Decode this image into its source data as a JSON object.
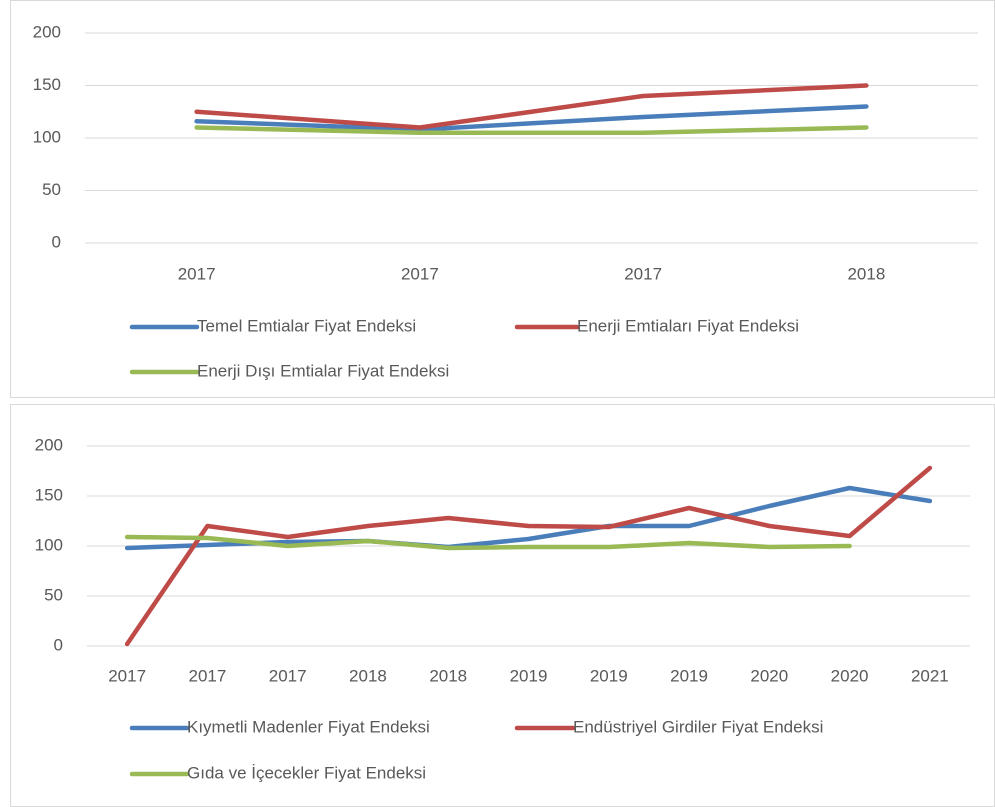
{
  "chart_data": [
    {
      "type": "line",
      "categories": [
        "2017",
        "2017",
        "2017",
        "2018"
      ],
      "series": [
        {
          "name": "Temel Emtialar Fiyat Endeksi",
          "color": "#4a7ebb",
          "values": [
            116,
            108,
            120,
            130
          ]
        },
        {
          "name": "Enerji Emtiaları Fiyat Endeksi",
          "color": "#be4b48",
          "values": [
            125,
            110,
            140,
            150
          ]
        },
        {
          "name": "Enerji Dışı Emtialar Fiyat Endeksi",
          "color": "#98b954",
          "values": [
            110,
            105,
            105,
            110
          ]
        }
      ],
      "ylim": [
        0,
        200
      ],
      "yticks": [
        0,
        50,
        100,
        150,
        200
      ],
      "grid": true,
      "legend": "bottom"
    },
    {
      "type": "line",
      "categories": [
        "2017",
        "2017",
        "2017",
        "2018",
        "2018",
        "2019",
        "2019",
        "2019",
        "2020",
        "2020",
        "2021"
      ],
      "series": [
        {
          "name": "Kıymetli Madenler Fiyat Endeksi",
          "color": "#4a7ebb",
          "values": [
            98,
            101,
            104,
            105,
            99,
            107,
            120,
            120,
            140,
            158,
            145
          ]
        },
        {
          "name": "Endüstriyel Girdiler Fiyat Endeksi",
          "color": "#be4b48",
          "values": [
            2,
            120,
            109,
            120,
            128,
            120,
            119,
            138,
            120,
            110,
            178
          ]
        },
        {
          "name": "Gıda ve İçecekler Fiyat Endeksi",
          "color": "#98b954",
          "values": [
            109,
            108,
            100,
            105,
            98,
            99,
            99,
            103,
            99,
            100,
            null
          ]
        }
      ],
      "ylim": [
        0,
        200
      ],
      "yticks": [
        0,
        50,
        100,
        150,
        200
      ],
      "grid": true,
      "legend": "bottom"
    }
  ]
}
